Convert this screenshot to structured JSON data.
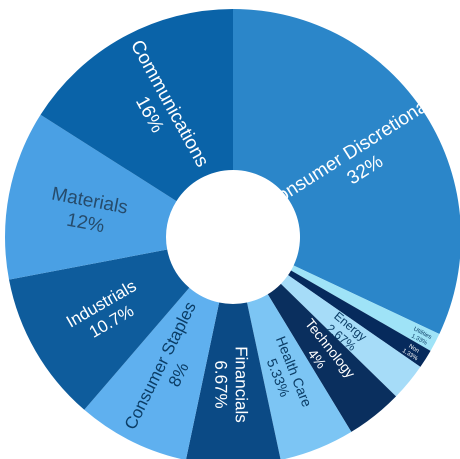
{
  "chart_data": {
    "type": "pie",
    "variant": "donut",
    "slices": [
      {
        "name": "Consumer Discretionary",
        "value": 32,
        "label": "32%",
        "color": "#2b86c9",
        "text_color": "#ffffff"
      },
      {
        "name": "Utilities",
        "value": 1.33,
        "label": "1.33%",
        "color": "#9fe3f7",
        "text_color": "#0b3d66"
      },
      {
        "name": "Non",
        "value": 1.33,
        "label": "1.33%",
        "color": "#062a5c",
        "text_color": "#ffffff"
      },
      {
        "name": "Energy",
        "value": 2.67,
        "label": "2.67%",
        "color": "#a6dcf8",
        "text_color": "#0b3d66"
      },
      {
        "name": "Technology",
        "value": 4,
        "label": "4%",
        "color": "#0a2f5e",
        "text_color": "#ffffff"
      },
      {
        "name": "Health Care",
        "value": 5.33,
        "label": "5.33%",
        "color": "#7cc5f4",
        "text_color": "#0b3d66"
      },
      {
        "name": "Financials",
        "value": 6.67,
        "label": "6.67%",
        "color": "#0b4a85",
        "text_color": "#ffffff"
      },
      {
        "name": "Consumer Staples",
        "value": 8,
        "label": "8%",
        "color": "#5fb0ef",
        "text_color": "#0b3d66"
      },
      {
        "name": "Industrials",
        "value": 10.7,
        "label": "10.7%",
        "color": "#0e5c9c",
        "text_color": "#ffffff"
      },
      {
        "name": "Materials",
        "value": 12,
        "label": "12%",
        "color": "#4aa0e4",
        "text_color": "#264b6b"
      },
      {
        "name": "Communications",
        "value": 16,
        "label": "16%",
        "color": "#0a63a8",
        "text_color": "#ffffff"
      }
    ]
  }
}
